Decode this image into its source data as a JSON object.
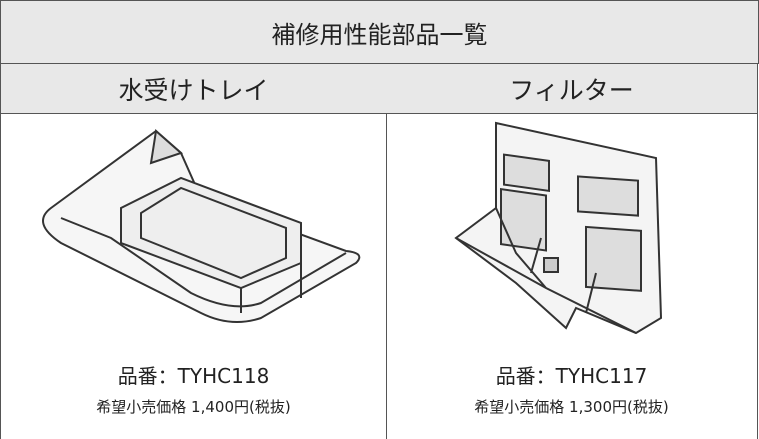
{
  "title": "補修用性能部品一覧",
  "products": [
    {
      "name": "水受けトレイ",
      "part_number": "品番：TYHC118",
      "price": "希望小売価格 1,400円(税抜)"
    },
    {
      "name": "フィルター",
      "part_number": "品番：TYHC117",
      "price": "希望小売価格 1,300円(税抜)"
    }
  ]
}
